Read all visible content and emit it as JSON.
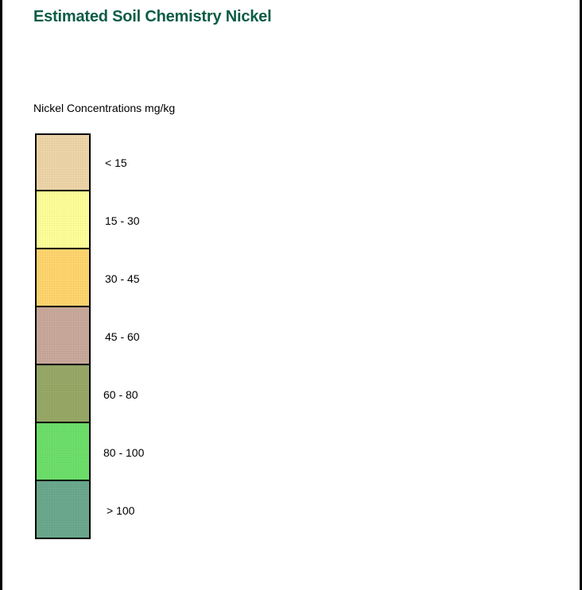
{
  "title": "Estimated Soil Chemistry Nickel",
  "legend": {
    "heading": "Nickel Concentrations mg/kg",
    "items": [
      {
        "label": "< 15",
        "color": "#eed5a8"
      },
      {
        "label": "15 - 30",
        "color": "#ffff99"
      },
      {
        "label": "30 - 45",
        "color": "#ffd56e"
      },
      {
        "label": "45 - 60",
        "color": "#c9a99a"
      },
      {
        "label": "60 - 80",
        "color": "#97a867"
      },
      {
        "label": "80 - 100",
        "color": "#6ddf6a"
      },
      {
        "label": "> 100",
        "color": "#6ba98d"
      }
    ]
  }
}
